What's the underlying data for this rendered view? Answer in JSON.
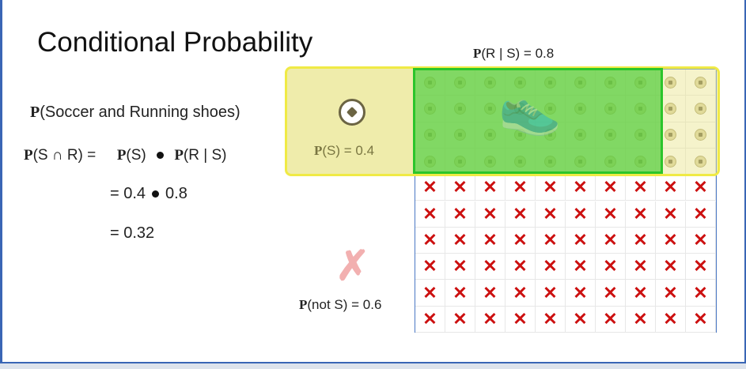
{
  "title": "Conditional Probability",
  "rs_prefix": "P",
  "rs_rest": "(R | S) = 0.8",
  "soccer_prefix": "P",
  "soccer_rest": "(Soccer and Running shoes)",
  "formula": {
    "p1": "P",
    "lhs_rest": "(S ∩ R) =",
    "p2": "P",
    "s_rest": "(S)",
    "p3": "P",
    "rs_rest": "(R | S)"
  },
  "line2": {
    "a": "= 0.4",
    "b": "0.8"
  },
  "line3": "= 0.32",
  "ps_prefix": "P",
  "ps_rest": "(S) = 0.4",
  "pnots_prefix": "P",
  "pnots_rest": "(not S) = 0.6",
  "grid": {
    "columns": 10,
    "rows": 10,
    "soccer_rows": 4,
    "running_columns": 8
  },
  "icons": {
    "soccer": "soccer-ball-icon",
    "shoe": "running-shoe-icon",
    "not": "x-mark-icon"
  },
  "colors": {
    "yellow": "#f0ea45",
    "green": "#2bc52b",
    "red": "#cc1010"
  }
}
